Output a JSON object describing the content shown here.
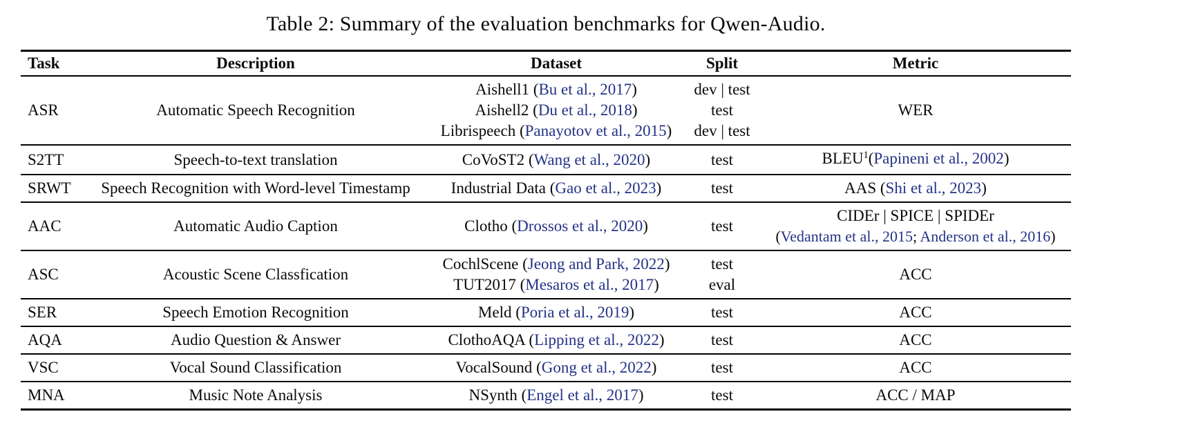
{
  "title": "Table 2: Summary of the evaluation benchmarks for Qwen-Audio.",
  "colors": {
    "background": "#ffffff",
    "text": "#0a0a0a",
    "rule": "#000000",
    "citation_link": "#243286"
  },
  "table": {
    "headers": [
      "Task",
      "Description",
      "Dataset",
      "Split",
      "Metric"
    ],
    "rows": [
      {
        "task": "ASR",
        "description": "Automatic Speech Recognition",
        "dataset_lines": [
          {
            "pre": "Aishell1 (",
            "cite": "Bu et al., 2017",
            "post": ")"
          },
          {
            "pre": "Aishell2 (",
            "cite": "Du et al., 2018",
            "post": ")"
          },
          {
            "pre": "Librispeech (",
            "cite": "Panayotov et al., 2015",
            "post": ")"
          }
        ],
        "split_lines": [
          "dev | test",
          "test",
          "dev | test"
        ],
        "metric_lines": [
          {
            "text": "WER"
          }
        ]
      },
      {
        "task": "S2TT",
        "description": "Speech-to-text translation",
        "dataset_lines": [
          {
            "pre": "CoVoST2 (",
            "cite": "Wang et al., 2020",
            "post": ")"
          }
        ],
        "split_lines": [
          "test"
        ],
        "metric_lines": [
          {
            "pre": "BLEU",
            "sup": "1",
            "mid": "(",
            "cite": "Papineni et al., 2002",
            "post": ")"
          }
        ]
      },
      {
        "task": "SRWT",
        "description": "Speech Recognition with Word-level Timestamp",
        "dataset_lines": [
          {
            "pre": "Industrial Data (",
            "cite": "Gao et al., 2023",
            "post": ")"
          }
        ],
        "split_lines": [
          "test"
        ],
        "metric_lines": [
          {
            "pre": "AAS (",
            "cite": "Shi et al., 2023",
            "post": ")"
          }
        ]
      },
      {
        "task": "AAC",
        "description": "Automatic Audio Caption",
        "dataset_lines": [
          {
            "pre": "Clotho (",
            "cite": "Drossos et al., 2020",
            "post": ")"
          }
        ],
        "split_lines": [
          "test"
        ],
        "metric_lines": [
          {
            "text": "CIDEr | SPICE | SPIDEr"
          },
          {
            "pre": "(",
            "cite": "Vedantam et al., 2015",
            "mid": "; ",
            "cite2": "Anderson et al., 2016",
            "post": ")"
          }
        ]
      },
      {
        "task": "ASC",
        "description": "Acoustic Scene Classfication",
        "dataset_lines": [
          {
            "pre": "CochlScene (",
            "cite": "Jeong and Park, 2022",
            "post": ")"
          },
          {
            "pre": "TUT2017 (",
            "cite": "Mesaros et al., 2017",
            "post": ")"
          }
        ],
        "split_lines": [
          "test",
          "eval"
        ],
        "metric_lines": [
          {
            "text": "ACC"
          }
        ]
      },
      {
        "task": "SER",
        "description": "Speech Emotion Recognition",
        "dataset_lines": [
          {
            "pre": "Meld (",
            "cite": "Poria et al., 2019",
            "post": ")"
          }
        ],
        "split_lines": [
          "test"
        ],
        "metric_lines": [
          {
            "text": "ACC"
          }
        ]
      },
      {
        "task": "AQA",
        "description": "Audio Question & Answer",
        "dataset_lines": [
          {
            "pre": "ClothoAQA (",
            "cite": "Lipping et al., 2022",
            "post": ")"
          }
        ],
        "split_lines": [
          "test"
        ],
        "metric_lines": [
          {
            "text": "ACC"
          }
        ]
      },
      {
        "task": "VSC",
        "description": "Vocal Sound Classification",
        "dataset_lines": [
          {
            "pre": "VocalSound (",
            "cite": "Gong et al., 2022",
            "post": ")"
          }
        ],
        "split_lines": [
          "test"
        ],
        "metric_lines": [
          {
            "text": "ACC"
          }
        ]
      },
      {
        "task": "MNA",
        "description": "Music Note Analysis",
        "dataset_lines": [
          {
            "pre": "NSynth (",
            "cite": "Engel et al., 2017",
            "post": ")"
          }
        ],
        "split_lines": [
          "test"
        ],
        "metric_lines": [
          {
            "text": "ACC / MAP"
          }
        ]
      }
    ]
  }
}
